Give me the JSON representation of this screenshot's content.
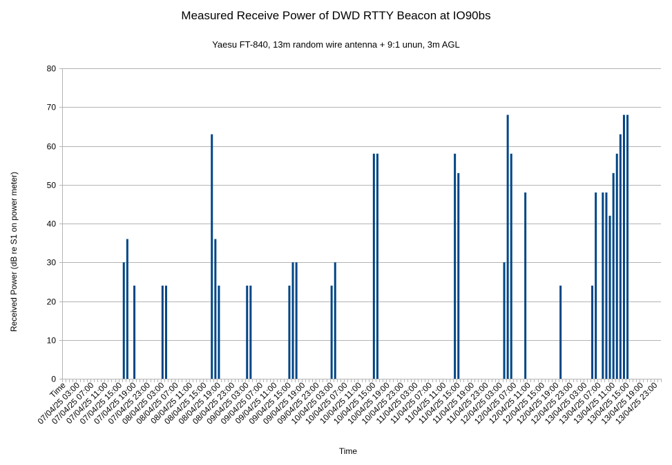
{
  "chart_data": {
    "type": "bar",
    "title": "Measured Receive Power of DWD RTTY Beacon at IO90bs",
    "subtitle": "Yaesu FT-840, 13m random wire antenna + 9:1 unun, 3m AGL",
    "xlabel": "Time",
    "ylabel": "Received Power (dB re S1 on power meter)",
    "ylim": [
      0,
      80
    ],
    "yticks": [
      0,
      10,
      20,
      30,
      40,
      50,
      60,
      70,
      80
    ],
    "grid": true,
    "bar_color": "#004586",
    "x_tick_labels": [
      "Time",
      "07/04/25 03:00",
      "07/04/25 07:00",
      "07/04/25 11:00",
      "07/04/25 15:00",
      "07/04/25 19:00",
      "07/04/25 23:00",
      "08/04/25 03:00",
      "08/04/25 07:00",
      "08/04/25 11:00",
      "08/04/25 15:00",
      "08/04/25 19:00",
      "08/04/25 23:00",
      "09/04/25 03:00",
      "09/04/25 07:00",
      "09/04/25 11:00",
      "09/04/25 15:00",
      "09/04/25 19:00",
      "09/04/25 23:00",
      "10/04/25 03:00",
      "10/04/25 07:00",
      "10/04/25 11:00",
      "10/04/25 15:00",
      "10/04/25 19:00",
      "10/04/25 23:00",
      "11/04/25 03:00",
      "11/04/25 07:00",
      "11/04/25 11:00",
      "11/04/25 15:00",
      "11/04/25 19:00",
      "11/04/25 23:00",
      "12/04/25 03:00",
      "12/04/25 07:00",
      "12/04/25 11:00",
      "12/04/25 15:00",
      "12/04/25 19:00",
      "12/04/25 23:00",
      "13/04/25 03:00",
      "13/04/25 07:00",
      "13/04/25 11:00",
      "13/04/25 15:00",
      "13/04/25 19:00",
      "13/04/25 23:00"
    ],
    "points": [
      {
        "x": "07/04/25 19:00",
        "y": 30
      },
      {
        "x": "07/04/25 20:00",
        "y": 36
      },
      {
        "x": "07/04/25 22:00",
        "y": 24
      },
      {
        "x": "08/04/25 06:00",
        "y": 24
      },
      {
        "x": "08/04/25 07:00",
        "y": 24
      },
      {
        "x": "08/04/25 20:00",
        "y": 63
      },
      {
        "x": "08/04/25 21:00",
        "y": 36
      },
      {
        "x": "08/04/25 22:00",
        "y": 24
      },
      {
        "x": "09/04/25 06:00",
        "y": 24
      },
      {
        "x": "09/04/25 07:00",
        "y": 24
      },
      {
        "x": "09/04/25 18:00",
        "y": 24
      },
      {
        "x": "09/04/25 19:00",
        "y": 30
      },
      {
        "x": "09/04/25 20:00",
        "y": 30
      },
      {
        "x": "10/04/25 06:00",
        "y": 24
      },
      {
        "x": "10/04/25 07:00",
        "y": 30
      },
      {
        "x": "10/04/25 18:00",
        "y": 58
      },
      {
        "x": "10/04/25 19:00",
        "y": 58
      },
      {
        "x": "11/04/25 17:00",
        "y": 58
      },
      {
        "x": "11/04/25 18:00",
        "y": 53
      },
      {
        "x": "12/04/25 07:00",
        "y": 30
      },
      {
        "x": "12/04/25 08:00",
        "y": 68
      },
      {
        "x": "12/04/25 09:00",
        "y": 58
      },
      {
        "x": "12/04/25 13:00",
        "y": 48
      },
      {
        "x": "12/04/25 23:00",
        "y": 24
      },
      {
        "x": "13/04/25 08:00",
        "y": 24
      },
      {
        "x": "13/04/25 09:00",
        "y": 48
      },
      {
        "x": "13/04/25 11:00",
        "y": 48
      },
      {
        "x": "13/04/25 12:00",
        "y": 48
      },
      {
        "x": "13/04/25 13:00",
        "y": 42
      },
      {
        "x": "13/04/25 14:00",
        "y": 53
      },
      {
        "x": "13/04/25 15:00",
        "y": 58
      },
      {
        "x": "13/04/25 16:00",
        "y": 63
      },
      {
        "x": "13/04/25 17:00",
        "y": 68
      },
      {
        "x": "13/04/25 18:00",
        "y": 68
      }
    ]
  }
}
